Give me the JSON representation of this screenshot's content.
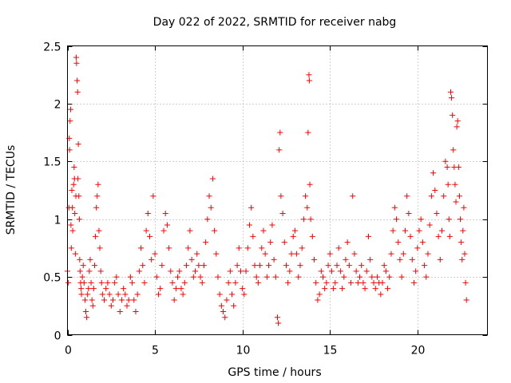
{
  "chart_data": {
    "type": "scatter",
    "title": "Day 022 of 2022, SRMTID for receiver nabg",
    "xlabel": "GPS time / hours",
    "ylabel": "SRMTID / TECUs",
    "xlim": [
      0,
      24
    ],
    "ylim": [
      0,
      2.5
    ],
    "xticks": [
      0,
      5,
      10,
      15,
      20
    ],
    "xtick_labels": [
      "0",
      "5",
      "10",
      "15",
      "20"
    ],
    "yticks": [
      0,
      0.5,
      1,
      1.5,
      2,
      2.5
    ],
    "ytick_labels": [
      "0",
      "0.5",
      "1",
      "1.5",
      "2",
      "2.5"
    ],
    "grid": true,
    "marker": "+",
    "series": [
      {
        "name": "SRMTID",
        "color": "#ff0000",
        "points": [
          [
            0.0,
            0.55
          ],
          [
            0.05,
            0.45
          ],
          [
            0.08,
            1.1
          ],
          [
            0.1,
            1.7
          ],
          [
            0.12,
            1.6
          ],
          [
            0.15,
            1.85
          ],
          [
            0.18,
            1.95
          ],
          [
            0.2,
            0.95
          ],
          [
            0.22,
            0.75
          ],
          [
            0.25,
            1.25
          ],
          [
            0.28,
            1.1
          ],
          [
            0.3,
            0.9
          ],
          [
            0.35,
            1.3
          ],
          [
            0.38,
            1.45
          ],
          [
            0.4,
            1.35
          ],
          [
            0.42,
            1.05
          ],
          [
            0.45,
            0.7
          ],
          [
            0.48,
            1.2
          ],
          [
            0.5,
            2.4
          ],
          [
            0.52,
            2.35
          ],
          [
            0.55,
            2.2
          ],
          [
            0.58,
            2.1
          ],
          [
            0.6,
            1.35
          ],
          [
            0.62,
            1.65
          ],
          [
            0.65,
            1.2
          ],
          [
            0.68,
            1.0
          ],
          [
            0.7,
            0.65
          ],
          [
            0.72,
            0.55
          ],
          [
            0.75,
            0.45
          ],
          [
            0.78,
            0.4
          ],
          [
            0.8,
            0.35
          ],
          [
            0.85,
            0.5
          ],
          [
            0.9,
            0.6
          ],
          [
            0.95,
            0.45
          ],
          [
            1.0,
            0.3
          ],
          [
            1.05,
            0.2
          ],
          [
            1.1,
            0.15
          ],
          [
            1.15,
            0.35
          ],
          [
            1.2,
            0.4
          ],
          [
            1.25,
            0.55
          ],
          [
            1.3,
            0.65
          ],
          [
            1.35,
            0.45
          ],
          [
            1.4,
            0.3
          ],
          [
            1.45,
            0.25
          ],
          [
            1.5,
            0.4
          ],
          [
            1.55,
            0.6
          ],
          [
            1.6,
            0.85
          ],
          [
            1.65,
            1.1
          ],
          [
            1.7,
            1.2
          ],
          [
            1.75,
            1.3
          ],
          [
            1.8,
            0.9
          ],
          [
            1.85,
            0.75
          ],
          [
            1.9,
            0.55
          ],
          [
            1.95,
            0.45
          ],
          [
            2.0,
            0.35
          ],
          [
            2.1,
            0.3
          ],
          [
            2.2,
            0.4
          ],
          [
            2.3,
            0.45
          ],
          [
            2.4,
            0.35
          ],
          [
            2.5,
            0.25
          ],
          [
            2.6,
            0.3
          ],
          [
            2.7,
            0.45
          ],
          [
            2.8,
            0.5
          ],
          [
            2.9,
            0.35
          ],
          [
            3.0,
            0.2
          ],
          [
            3.1,
            0.3
          ],
          [
            3.2,
            0.4
          ],
          [
            3.3,
            0.35
          ],
          [
            3.4,
            0.25
          ],
          [
            3.5,
            0.3
          ],
          [
            3.6,
            0.5
          ],
          [
            3.7,
            0.45
          ],
          [
            3.8,
            0.3
          ],
          [
            3.9,
            0.2
          ],
          [
            4.0,
            0.35
          ],
          [
            4.1,
            0.55
          ],
          [
            4.2,
            0.75
          ],
          [
            4.3,
            0.6
          ],
          [
            4.4,
            0.45
          ],
          [
            4.5,
            0.9
          ],
          [
            4.6,
            1.05
          ],
          [
            4.7,
            0.85
          ],
          [
            4.8,
            0.65
          ],
          [
            4.9,
            1.2
          ],
          [
            5.0,
            0.7
          ],
          [
            5.1,
            0.5
          ],
          [
            5.2,
            0.35
          ],
          [
            5.3,
            0.4
          ],
          [
            5.4,
            0.6
          ],
          [
            5.5,
            0.9
          ],
          [
            5.6,
            1.05
          ],
          [
            5.7,
            0.95
          ],
          [
            5.8,
            0.75
          ],
          [
            5.9,
            0.55
          ],
          [
            6.0,
            0.45
          ],
          [
            6.1,
            0.3
          ],
          [
            6.2,
            0.4
          ],
          [
            6.3,
            0.5
          ],
          [
            6.4,
            0.55
          ],
          [
            6.5,
            0.4
          ],
          [
            6.6,
            0.35
          ],
          [
            6.7,
            0.45
          ],
          [
            6.8,
            0.6
          ],
          [
            6.9,
            0.75
          ],
          [
            7.0,
            0.9
          ],
          [
            7.1,
            0.65
          ],
          [
            7.2,
            0.5
          ],
          [
            7.3,
            0.55
          ],
          [
            7.4,
            0.7
          ],
          [
            7.5,
            0.6
          ],
          [
            7.6,
            0.5
          ],
          [
            7.7,
            0.45
          ],
          [
            7.8,
            0.6
          ],
          [
            7.9,
            0.8
          ],
          [
            8.0,
            1.0
          ],
          [
            8.1,
            1.2
          ],
          [
            8.2,
            1.1
          ],
          [
            8.3,
            1.35
          ],
          [
            8.4,
            0.9
          ],
          [
            8.5,
            0.7
          ],
          [
            8.6,
            0.5
          ],
          [
            8.7,
            0.35
          ],
          [
            8.8,
            0.25
          ],
          [
            8.9,
            0.2
          ],
          [
            9.0,
            0.15
          ],
          [
            9.1,
            0.3
          ],
          [
            9.2,
            0.45
          ],
          [
            9.3,
            0.55
          ],
          [
            9.4,
            0.35
          ],
          [
            9.5,
            0.25
          ],
          [
            9.6,
            0.45
          ],
          [
            9.7,
            0.6
          ],
          [
            9.8,
            0.75
          ],
          [
            9.9,
            0.55
          ],
          [
            10.0,
            0.4
          ],
          [
            10.1,
            0.35
          ],
          [
            10.2,
            0.55
          ],
          [
            10.3,
            0.75
          ],
          [
            10.4,
            0.95
          ],
          [
            10.5,
            1.1
          ],
          [
            10.6,
            0.85
          ],
          [
            10.7,
            0.6
          ],
          [
            10.8,
            0.5
          ],
          [
            10.9,
            0.45
          ],
          [
            11.0,
            0.6
          ],
          [
            11.1,
            0.75
          ],
          [
            11.2,
            0.9
          ],
          [
            11.3,
            0.7
          ],
          [
            11.4,
            0.5
          ],
          [
            11.5,
            0.6
          ],
          [
            11.6,
            0.8
          ],
          [
            11.7,
            0.95
          ],
          [
            11.8,
            0.65
          ],
          [
            11.9,
            0.5
          ],
          [
            12.0,
            0.15
          ],
          [
            12.05,
            0.1
          ],
          [
            12.1,
            1.6
          ],
          [
            12.15,
            1.75
          ],
          [
            12.2,
            1.2
          ],
          [
            12.3,
            1.05
          ],
          [
            12.4,
            0.8
          ],
          [
            12.5,
            0.6
          ],
          [
            12.6,
            0.45
          ],
          [
            12.7,
            0.55
          ],
          [
            12.8,
            0.7
          ],
          [
            12.9,
            0.85
          ],
          [
            13.0,
            0.9
          ],
          [
            13.1,
            0.7
          ],
          [
            13.2,
            0.5
          ],
          [
            13.3,
            0.6
          ],
          [
            13.4,
            0.75
          ],
          [
            13.5,
            1.0
          ],
          [
            13.6,
            1.2
          ],
          [
            13.7,
            1.1
          ],
          [
            13.75,
            1.75
          ],
          [
            13.8,
            2.25
          ],
          [
            13.82,
            2.2
          ],
          [
            13.85,
            1.3
          ],
          [
            13.9,
            1.0
          ],
          [
            14.0,
            0.85
          ],
          [
            14.1,
            0.65
          ],
          [
            14.2,
            0.45
          ],
          [
            14.3,
            0.3
          ],
          [
            14.4,
            0.35
          ],
          [
            14.5,
            0.55
          ],
          [
            14.6,
            0.5
          ],
          [
            14.7,
            0.4
          ],
          [
            14.8,
            0.45
          ],
          [
            14.9,
            0.6
          ],
          [
            15.0,
            0.7
          ],
          [
            15.1,
            0.55
          ],
          [
            15.2,
            0.4
          ],
          [
            15.3,
            0.45
          ],
          [
            15.4,
            0.6
          ],
          [
            15.5,
            0.75
          ],
          [
            15.6,
            0.55
          ],
          [
            15.7,
            0.4
          ],
          [
            15.8,
            0.5
          ],
          [
            15.9,
            0.65
          ],
          [
            16.0,
            0.8
          ],
          [
            16.1,
            0.6
          ],
          [
            16.2,
            0.45
          ],
          [
            16.3,
            1.2
          ],
          [
            16.4,
            0.7
          ],
          [
            16.5,
            0.55
          ],
          [
            16.6,
            0.45
          ],
          [
            16.7,
            0.5
          ],
          [
            16.8,
            0.6
          ],
          [
            16.9,
            0.45
          ],
          [
            17.0,
            0.4
          ],
          [
            17.1,
            0.55
          ],
          [
            17.2,
            0.85
          ],
          [
            17.3,
            0.65
          ],
          [
            17.4,
            0.5
          ],
          [
            17.5,
            0.45
          ],
          [
            17.6,
            0.4
          ],
          [
            17.7,
            0.5
          ],
          [
            17.8,
            0.45
          ],
          [
            17.9,
            0.35
          ],
          [
            18.0,
            0.45
          ],
          [
            18.1,
            0.6
          ],
          [
            18.2,
            0.55
          ],
          [
            18.3,
            0.4
          ],
          [
            18.4,
            0.5
          ],
          [
            18.5,
            0.7
          ],
          [
            18.6,
            0.9
          ],
          [
            18.7,
            1.1
          ],
          [
            18.8,
            1.0
          ],
          [
            18.9,
            0.8
          ],
          [
            19.0,
            0.65
          ],
          [
            19.1,
            0.5
          ],
          [
            19.2,
            0.7
          ],
          [
            19.3,
            0.9
          ],
          [
            19.4,
            1.2
          ],
          [
            19.5,
            1.05
          ],
          [
            19.6,
            0.85
          ],
          [
            19.7,
            0.65
          ],
          [
            19.8,
            0.45
          ],
          [
            19.9,
            0.55
          ],
          [
            20.0,
            0.75
          ],
          [
            20.1,
            0.9
          ],
          [
            20.2,
            1.0
          ],
          [
            20.3,
            0.8
          ],
          [
            20.4,
            0.6
          ],
          [
            20.5,
            0.5
          ],
          [
            20.6,
            0.7
          ],
          [
            20.7,
            0.95
          ],
          [
            20.8,
            1.2
          ],
          [
            20.9,
            1.4
          ],
          [
            21.0,
            1.25
          ],
          [
            21.1,
            1.05
          ],
          [
            21.2,
            0.85
          ],
          [
            21.3,
            0.65
          ],
          [
            21.4,
            0.9
          ],
          [
            21.5,
            1.2
          ],
          [
            21.6,
            1.5
          ],
          [
            21.7,
            1.45
          ],
          [
            21.75,
            1.3
          ],
          [
            21.8,
            1.0
          ],
          [
            21.85,
            0.85
          ],
          [
            21.9,
            2.1
          ],
          [
            21.95,
            2.05
          ],
          [
            22.0,
            1.9
          ],
          [
            22.05,
            1.6
          ],
          [
            22.1,
            1.45
          ],
          [
            22.15,
            1.3
          ],
          [
            22.2,
            1.15
          ],
          [
            22.25,
            1.8
          ],
          [
            22.3,
            1.85
          ],
          [
            22.35,
            1.45
          ],
          [
            22.4,
            1.2
          ],
          [
            22.45,
            1.0
          ],
          [
            22.5,
            0.8
          ],
          [
            22.55,
            0.65
          ],
          [
            22.6,
            0.9
          ],
          [
            22.65,
            1.1
          ],
          [
            22.7,
            0.7
          ],
          [
            22.75,
            0.45
          ],
          [
            22.8,
            0.3
          ]
        ]
      }
    ]
  }
}
